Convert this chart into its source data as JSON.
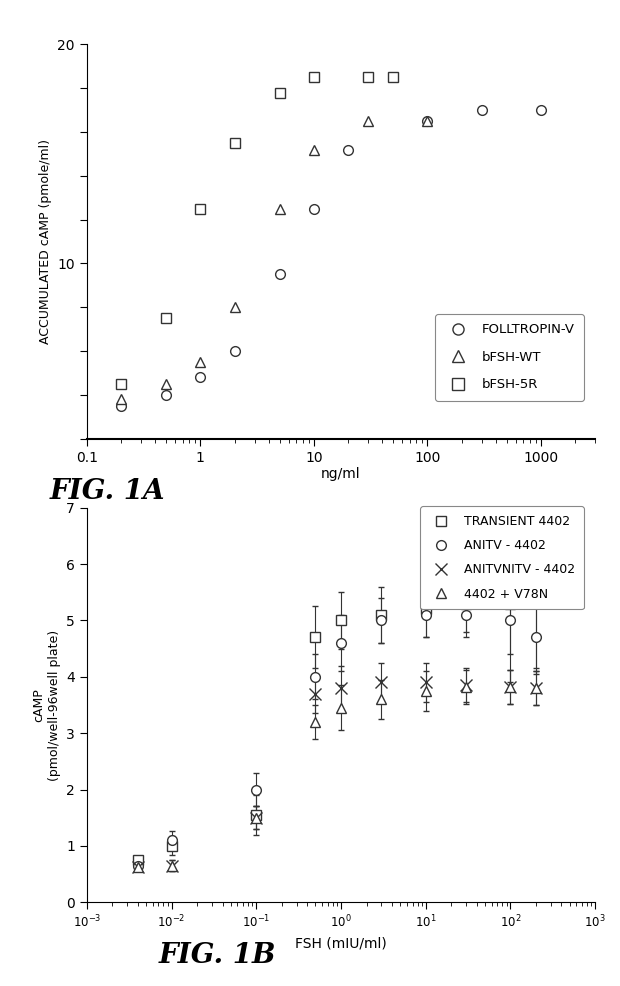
{
  "fig1a": {
    "xlabel": "ng/ml",
    "ylabel": "ACCUMULATED cAMP (pmole/ml)",
    "xlim": [
      0.1,
      3000
    ],
    "ylim": [
      2,
      20
    ],
    "ytick_vals": [
      2,
      4,
      6,
      8,
      10,
      12,
      14,
      16,
      18,
      20
    ],
    "ytick_labels": [
      "",
      "",
      "",
      "",
      "10",
      "",
      "",
      "",
      "",
      "20"
    ],
    "xtick_vals": [
      0.1,
      1,
      10,
      100,
      1000
    ],
    "xtick_labels": [
      "0.1",
      "1",
      "10",
      "100",
      "1000"
    ],
    "fig_label": "FIG. 1A",
    "series": [
      {
        "label": "FOLLTROPIN-V",
        "marker": "o",
        "x": [
          0.2,
          0.5,
          1.0,
          2.0,
          5.0,
          10,
          20,
          100,
          300,
          1000
        ],
        "y": [
          3.5,
          4.0,
          4.8,
          6.0,
          9.5,
          12.5,
          15.2,
          16.5,
          17.0,
          17.0
        ]
      },
      {
        "label": "bFSH-WT",
        "marker": "^",
        "x": [
          0.2,
          0.5,
          1.0,
          2.0,
          5.0,
          10,
          30,
          100
        ],
        "y": [
          3.8,
          4.5,
          5.5,
          8.0,
          12.5,
          15.2,
          16.5,
          16.5
        ]
      },
      {
        "label": "bFSH-5R",
        "marker": "s",
        "x": [
          0.2,
          0.5,
          1.0,
          2.0,
          5.0,
          10,
          30,
          50
        ],
        "y": [
          4.5,
          7.5,
          12.5,
          15.5,
          17.8,
          18.5,
          18.5,
          18.5
        ]
      }
    ]
  },
  "fig1b": {
    "xlabel": "FSH (mIU/ml)",
    "ylabel": "cAMP\n(pmol/well-96well plate)",
    "xlim_log": [
      -3,
      3
    ],
    "ylim": [
      0,
      7
    ],
    "ytick_vals": [
      0,
      1,
      2,
      3,
      4,
      5,
      6,
      7
    ],
    "ytick_labels": [
      "0",
      "1",
      "2",
      "3",
      "4",
      "5",
      "6",
      "7"
    ],
    "fig_label": "FIG. 1B",
    "series": [
      {
        "label": "TRANSIENT 4402",
        "marker": "s",
        "x": [
          0.004,
          0.01,
          0.1,
          0.5,
          1.0,
          3.0,
          10,
          30,
          100,
          200
        ],
        "y": [
          0.75,
          1.0,
          1.55,
          4.7,
          5.0,
          5.1,
          5.2,
          5.3,
          5.3,
          5.4
        ],
        "yerr": [
          0.05,
          0.17,
          0.35,
          0.55,
          0.5,
          0.5,
          0.5,
          0.5,
          1.4,
          1.35
        ]
      },
      {
        "label": "ANITV - 4402",
        "marker": "o",
        "x": [
          0.004,
          0.01,
          0.1,
          0.5,
          1.0,
          3.0,
          10,
          30,
          100,
          200
        ],
        "y": [
          0.65,
          1.1,
          2.0,
          4.0,
          4.6,
          5.0,
          5.1,
          5.1,
          5.0,
          4.7
        ],
        "yerr": [
          0.05,
          0.17,
          0.3,
          0.4,
          0.5,
          0.4,
          0.4,
          0.4,
          0.6,
          0.55
        ]
      },
      {
        "label": "ANITVNITV - 4402",
        "marker": "x",
        "x": [
          0.004,
          0.01,
          0.1,
          0.5,
          1.0,
          3.0,
          10,
          30,
          100,
          200
        ],
        "y": [
          0.62,
          0.65,
          1.5,
          3.7,
          3.8,
          3.9,
          3.9,
          3.85,
          3.82,
          3.8
        ],
        "yerr": [
          0.05,
          0.1,
          0.2,
          0.35,
          0.4,
          0.35,
          0.35,
          0.3,
          0.3,
          0.3
        ]
      },
      {
        "label": "4402 + V78N",
        "marker": "^",
        "x": [
          0.004,
          0.01,
          0.1,
          0.5,
          1.0,
          3.0,
          10,
          30,
          100,
          200
        ],
        "y": [
          0.62,
          0.65,
          1.5,
          3.2,
          3.45,
          3.6,
          3.75,
          3.82,
          3.82,
          3.8
        ],
        "yerr": [
          0.05,
          0.1,
          0.2,
          0.3,
          0.4,
          0.35,
          0.35,
          0.3,
          0.3,
          0.3
        ]
      }
    ]
  }
}
